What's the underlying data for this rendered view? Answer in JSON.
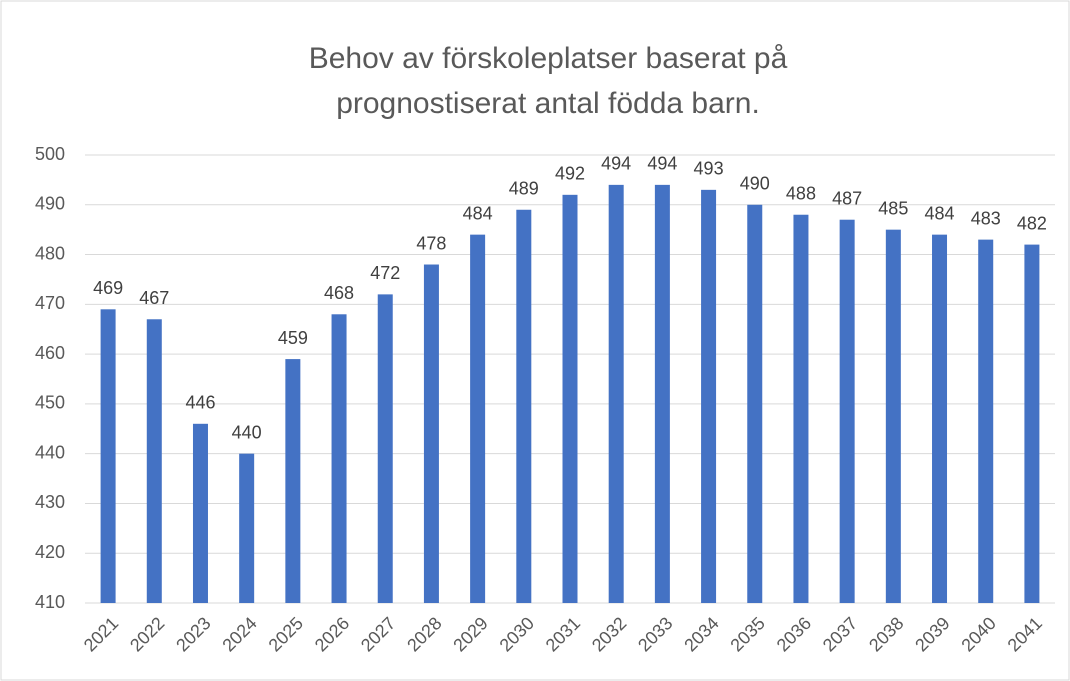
{
  "chart_data": {
    "type": "bar",
    "title": [
      "Behov av förskoleplatser baserat på",
      "prognostiserat antal födda barn."
    ],
    "categories": [
      "2021",
      "2022",
      "2023",
      "2024",
      "2025",
      "2026",
      "2027",
      "2028",
      "2029",
      "2030",
      "2031",
      "2032",
      "2033",
      "2034",
      "2035",
      "2036",
      "2037",
      "2038",
      "2039",
      "2040",
      "2041"
    ],
    "values": [
      469,
      467,
      446,
      440,
      459,
      468,
      472,
      478,
      484,
      489,
      492,
      494,
      494,
      493,
      490,
      488,
      487,
      485,
      484,
      483,
      482
    ],
    "color": "#4472c4",
    "ylim": [
      410,
      500
    ],
    "yticks": [
      410,
      420,
      430,
      440,
      450,
      460,
      470,
      480,
      490,
      500
    ],
    "grid": true
  }
}
